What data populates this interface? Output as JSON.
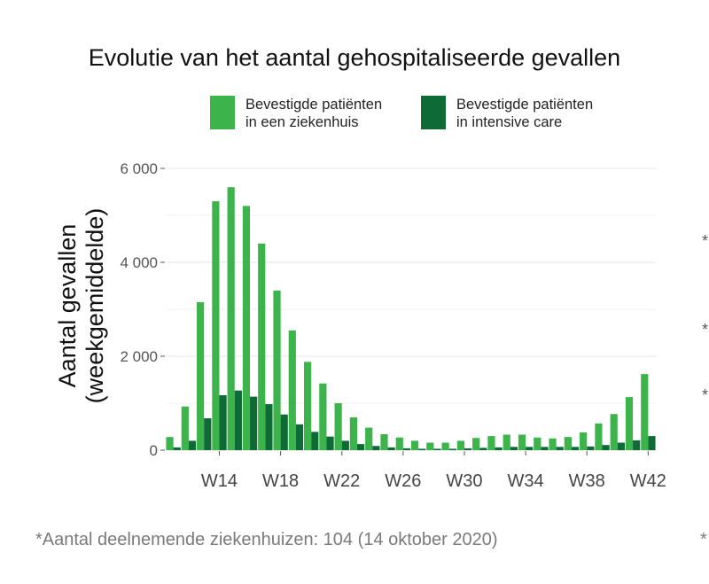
{
  "chart_data": {
    "type": "bar",
    "title": "Evolutie van het aantal gehospitaliseerde gevallen",
    "ylabel_line1": "Aantal gevallen",
    "ylabel_line2": "(weekgemiddelde)",
    "xlabel": "",
    "ylim": [
      0,
      6000
    ],
    "yticks": [
      0,
      2000,
      4000,
      6000
    ],
    "ytick_labels": [
      "0",
      "2 000",
      "4 000",
      "6 000"
    ],
    "gridlines": "horizontal",
    "legend_position": "top",
    "categories": [
      "W11",
      "W12",
      "W13",
      "W14",
      "W15",
      "W16",
      "W17",
      "W18",
      "W19",
      "W20",
      "W21",
      "W22",
      "W23",
      "W24",
      "W25",
      "W26",
      "W27",
      "W28",
      "W29",
      "W30",
      "W31",
      "W32",
      "W33",
      "W34",
      "W35",
      "W36",
      "W37",
      "W38",
      "W39",
      "W40",
      "W41",
      "W42"
    ],
    "xtick_labels": [
      "W14",
      "W18",
      "W22",
      "W26",
      "W30",
      "W34",
      "W38",
      "W42"
    ],
    "series": [
      {
        "name": "Bevestigde patiënten in een ziekenhuis",
        "legend_line1": "Bevestigde patiënten",
        "legend_line2": "in een ziekenhuis",
        "color": "#3cb44b",
        "values": [
          280,
          930,
          3150,
          5300,
          5600,
          5200,
          4400,
          3400,
          2550,
          1880,
          1420,
          1000,
          700,
          480,
          340,
          270,
          200,
          160,
          160,
          200,
          260,
          300,
          330,
          330,
          270,
          250,
          280,
          380,
          570,
          770,
          1130,
          1620
        ]
      },
      {
        "name": "Bevestigde patiënten in intensive care",
        "legend_line1": "Bevestigde patiënten",
        "legend_line2": "in intensive care",
        "color": "#0e6b35",
        "values": [
          60,
          200,
          680,
          1170,
          1270,
          1140,
          980,
          760,
          550,
          390,
          290,
          200,
          130,
          90,
          60,
          40,
          30,
          30,
          30,
          40,
          50,
          60,
          70,
          70,
          70,
          70,
          70,
          80,
          110,
          160,
          210,
          300
        ]
      }
    ]
  },
  "footnote": "*Aantal deelnemende ziekenhuizen: 104 (14 oktober 2020)",
  "edge_marks": [
    "*",
    "*",
    "*",
    "*"
  ]
}
